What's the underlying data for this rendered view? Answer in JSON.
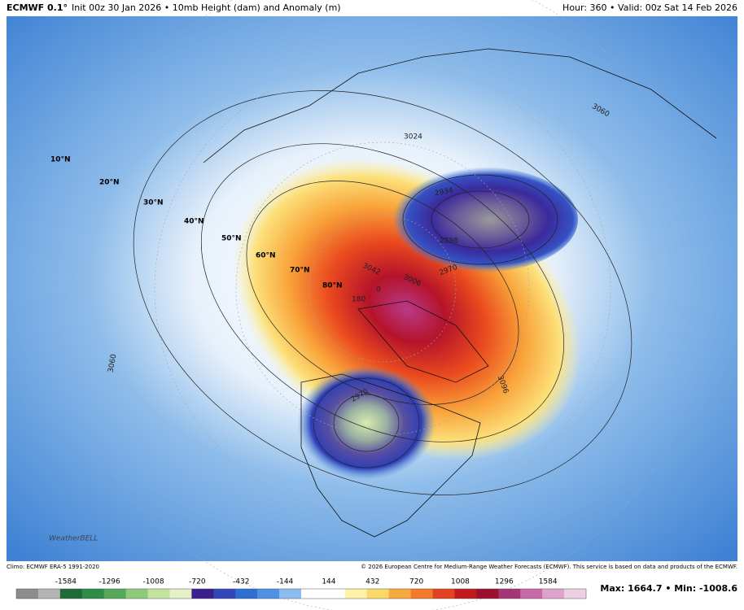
{
  "header": {
    "model": "ECMWF 0.1°",
    "description": "Init 00z 30 Jan 2026 • 10mb Height (dam) and Anomaly (m)",
    "valid": "Hour: 360 • Valid: 00z Sat 14 Feb 2026"
  },
  "map": {
    "latitude_labels": [
      "10°N",
      "20°N",
      "30°N",
      "40°N",
      "50°N",
      "60°N",
      "70°N",
      "80°N"
    ],
    "longitude_labels": [
      "180"
    ],
    "contour_labels": [
      "3060",
      "3024",
      "2970",
      "2934",
      "2898",
      "3042",
      "3006",
      "3096",
      "3060",
      "2970",
      "0"
    ],
    "logo": "WeatherBELL"
  },
  "footer": {
    "climo": "Climo: ECMWF ERA-5 1991-2020",
    "credit": "© 2026 European Centre for Medium-Range Weather Forecasts (ECMWF). This service is based on data and products of the ECMWF.",
    "extremes": "Max: 1664.7 • Min: -1008.6"
  },
  "colorbar": {
    "ticks": [
      -1584,
      -1296,
      -1008,
      -720,
      -432,
      -144,
      144,
      432,
      720,
      1008,
      1296,
      1584
    ],
    "colors": [
      "#8c8c8c",
      "#b4b4b4",
      "#1e6b3a",
      "#2f8c46",
      "#55a85a",
      "#8cc97a",
      "#c3e3a0",
      "#e4f1c8",
      "#3b1f8c",
      "#3346b8",
      "#2f6fd1",
      "#4f92e3",
      "#8bbcf0",
      "#ffffff",
      "#ffffff",
      "#fdf2a8",
      "#fbd86a",
      "#f8a93e",
      "#f27a2a",
      "#e2421f",
      "#c01a1f",
      "#9c0f2e",
      "#a53574",
      "#c76aa8",
      "#dda3ca",
      "#ecd0e2"
    ]
  }
}
